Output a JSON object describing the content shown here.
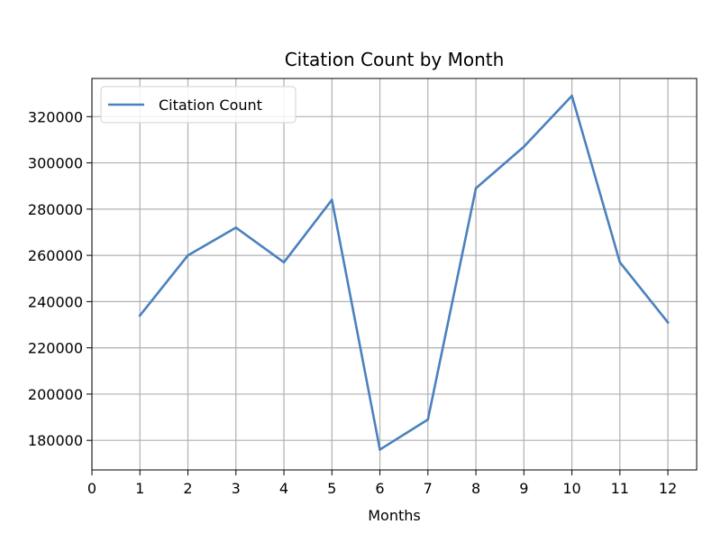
{
  "chart_data": {
    "type": "line",
    "title": "Citation Count by Month",
    "xlabel": "Months",
    "ylabel": "",
    "x": [
      1,
      2,
      3,
      4,
      5,
      6,
      7,
      8,
      9,
      10,
      11,
      12
    ],
    "series": [
      {
        "name": "Citation Count",
        "color": "#4a81bf",
        "values": [
          234000,
          260000,
          272000,
          257000,
          284000,
          176000,
          189000,
          289000,
          307000,
          329000,
          257000,
          231000
        ]
      }
    ],
    "x_ticks": [
      0,
      1,
      2,
      3,
      4,
      5,
      6,
      7,
      8,
      9,
      10,
      11,
      12
    ],
    "y_ticks": [
      180000,
      200000,
      220000,
      240000,
      260000,
      280000,
      300000,
      320000
    ],
    "y_tick_labels": [
      "180000",
      "200000",
      "220000",
      "240000",
      "260000",
      "280000",
      "300000",
      "320000"
    ],
    "xlim": [
      0,
      12.6
    ],
    "ylim": [
      167200,
      336500
    ],
    "grid": true,
    "legend_position": "top-left"
  }
}
